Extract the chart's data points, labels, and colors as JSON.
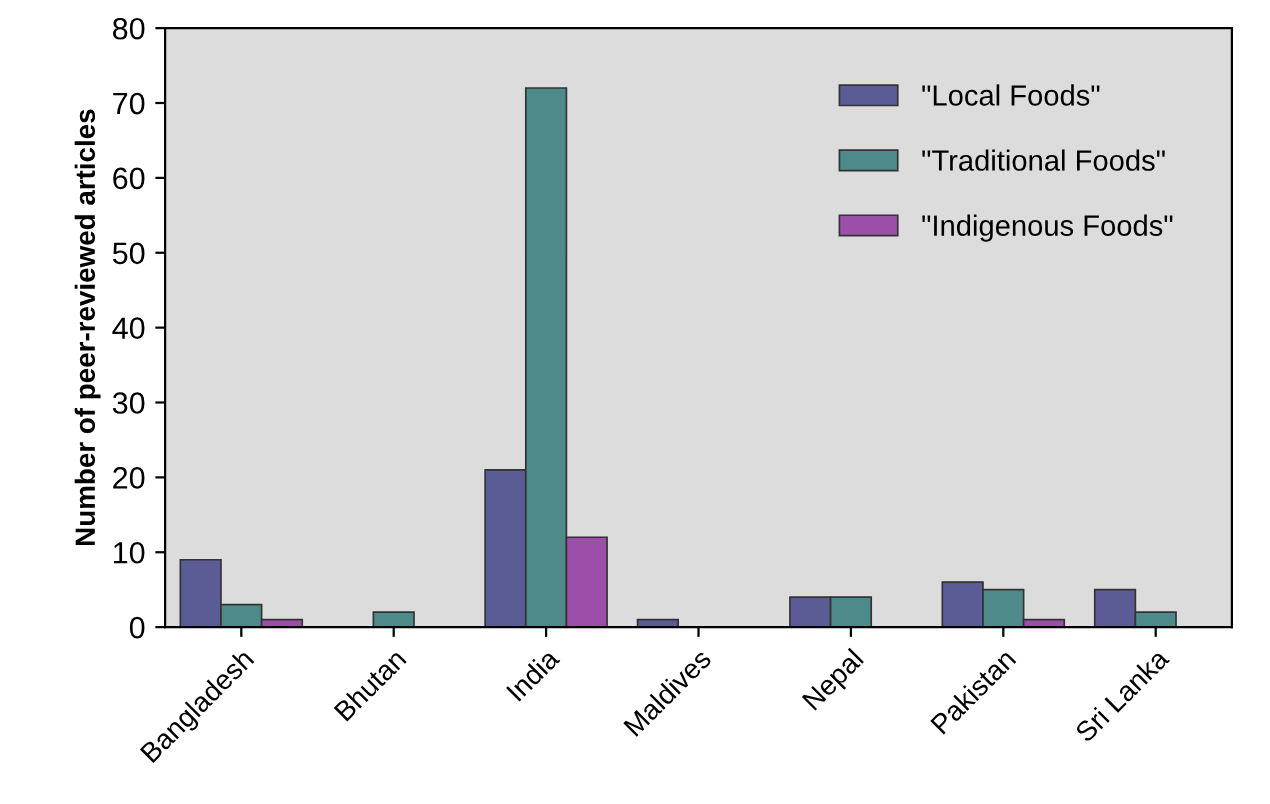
{
  "chart_data": {
    "type": "bar",
    "ylabel": "Number of peer-reviewed articles",
    "categories": [
      "Bangladesh",
      "Bhutan",
      "India",
      "Maldives",
      "Nepal",
      "Pakistan",
      "Sri Lanka"
    ],
    "series": [
      {
        "name": "\"Local Foods\"",
        "color": "#5b5b96",
        "values": [
          9,
          null,
          21,
          1,
          4,
          6,
          5
        ]
      },
      {
        "name": "\"Traditional Foods\"",
        "color": "#4f8a8b",
        "values": [
          3,
          2,
          72,
          null,
          4,
          5,
          2
        ]
      },
      {
        "name": "\"Indigenous Foods\"",
        "color": "#9c4fa8",
        "values": [
          1,
          null,
          12,
          null,
          null,
          1,
          null
        ]
      }
    ],
    "ylim": [
      0,
      80
    ],
    "yticks": [
      0,
      10,
      20,
      30,
      40,
      50,
      60,
      70,
      80
    ],
    "grid": false,
    "legend": "top right"
  }
}
